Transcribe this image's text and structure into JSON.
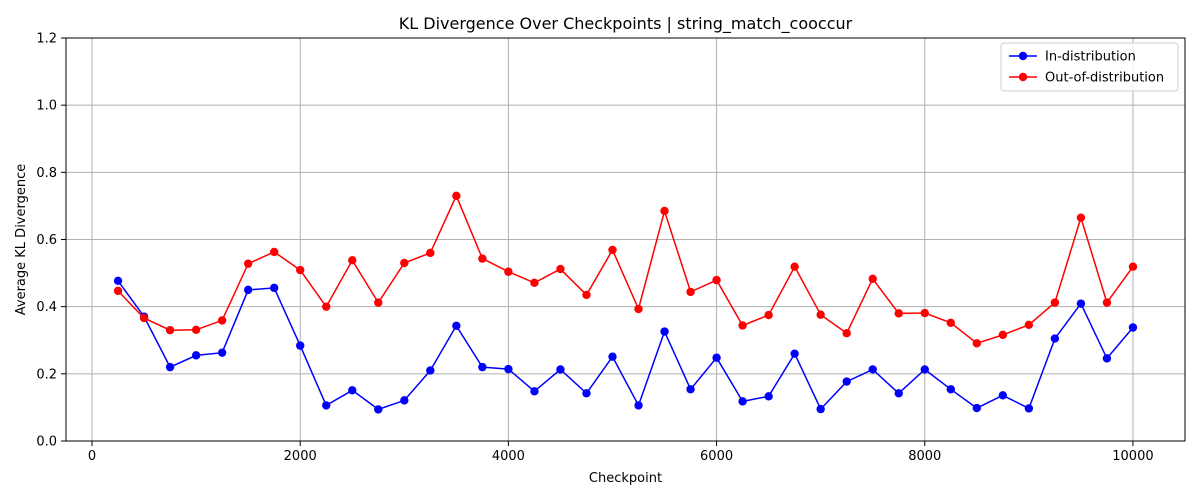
{
  "chart_data": {
    "type": "line",
    "title": "KL Divergence Over Checkpoints | string_match_cooccur",
    "xlabel": "Checkpoint",
    "ylabel": "Average KL Divergence",
    "xlim": [
      -250,
      10500
    ],
    "ylim": [
      0,
      1.2
    ],
    "xticks": [
      0,
      2000,
      4000,
      6000,
      8000,
      10000
    ],
    "yticks": [
      0.0,
      0.2,
      0.4,
      0.6,
      0.8,
      1.0,
      1.2
    ],
    "grid": true,
    "legend_position": "top-right",
    "x": [
      250,
      500,
      750,
      1000,
      1250,
      1500,
      1750,
      2000,
      2250,
      2500,
      2750,
      3000,
      3250,
      3500,
      3750,
      4000,
      4250,
      4500,
      4750,
      5000,
      5250,
      5500,
      5750,
      6000,
      6250,
      6500,
      6750,
      7000,
      7250,
      7500,
      7750,
      8000,
      8250,
      8500,
      8750,
      9000,
      9250,
      9500,
      9750,
      10000
    ],
    "series": [
      {
        "name": "In-distribution",
        "color": "#0000ff",
        "values": [
          0.477,
          0.37,
          0.22,
          0.255,
          0.263,
          0.45,
          0.456,
          0.284,
          0.106,
          0.151,
          0.094,
          0.121,
          0.21,
          0.343,
          0.22,
          0.214,
          0.148,
          0.213,
          0.142,
          0.251,
          0.106,
          0.326,
          0.154,
          0.248,
          0.118,
          0.133,
          0.26,
          0.095,
          0.177,
          0.213,
          0.142,
          0.213,
          0.154,
          0.098,
          0.136,
          0.097,
          0.305,
          0.409,
          0.246,
          0.338
        ]
      },
      {
        "name": "Out-of-distribution",
        "color": "#ff0000",
        "values": [
          0.447,
          0.366,
          0.33,
          0.331,
          0.359,
          0.528,
          0.563,
          0.509,
          0.4,
          0.538,
          0.412,
          0.53,
          0.56,
          0.73,
          0.543,
          0.504,
          0.471,
          0.512,
          0.435,
          0.569,
          0.393,
          0.685,
          0.444,
          0.479,
          0.344,
          0.375,
          0.519,
          0.376,
          0.321,
          0.483,
          0.38,
          0.381,
          0.352,
          0.291,
          0.316,
          0.346,
          0.412,
          0.665,
          0.412,
          0.519
        ]
      }
    ]
  }
}
